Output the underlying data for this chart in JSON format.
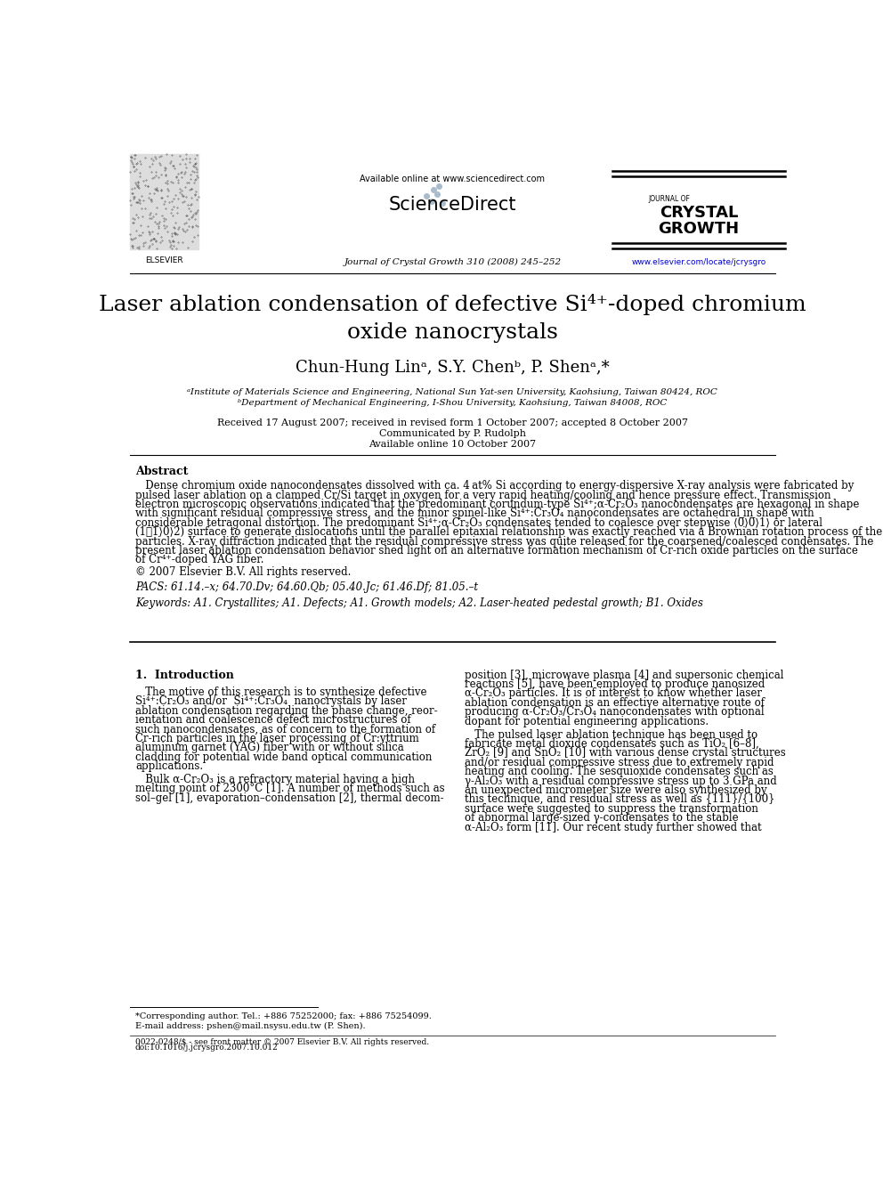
{
  "bg_color": "#ffffff",
  "page_width": 9.92,
  "page_height": 13.23,
  "header": {
    "available_online_text": "Available online at www.sciencedirect.com",
    "sciencedirect_text": "ScienceDirect",
    "journal_name_top": "JOURNAL OF",
    "journal_name_bold1": "CRYSTAL",
    "journal_name_bold2": "GROWTH",
    "journal_info": "Journal of Crystal Growth 310 (2008) 245–252",
    "journal_url": "www.elsevier.com/locate/jcrysgro",
    "elsevier_text": "ELSEVIER"
  },
  "title_line1": "Laser ablation condensation of defective Si⁴⁺-doped chromium",
  "title_line2": "oxide nanocrystals",
  "authors": "Chun-Hung Linᵃ, S.Y. Chenᵇ, P. Shenᵃ,*",
  "affiliations": [
    "ᵃInstitute of Materials Science and Engineering, National Sun Yat-sen University, Kaohsiung, Taiwan 80424, ROC",
    "ᵇDepartment of Mechanical Engineering, I-Shou University, Kaohsiung, Taiwan 84008, ROC"
  ],
  "received_info": "Received 17 August 2007; received in revised form 1 October 2007; accepted 8 October 2007",
  "communicated": "Communicated by P. Rudolph",
  "available_online": "Available online 10 October 2007",
  "abstract_heading": "Abstract",
  "copyright": "© 2007 Elsevier B.V. All rights reserved.",
  "pacs": "PACS: 61.14.–x; 64.70.Dv; 64.60.Qb; 05.40.Jc; 61.46.Df; 81.05.–t",
  "keywords": "Keywords: A1. Crystallites; A1. Defects; A1. Growth models; A2. Laser-heated pedestal growth; B1. Oxides",
  "section1_heading": "1.  Introduction",
  "footer": "0022-0248/$ - see front matter © 2007 Elsevier B.V. All rights reserved.",
  "footer2": "doi:10.1016/j.jcrysgro.2007.10.012",
  "footnote_star": "*Corresponding author. Tel.: +886 75252000; fax: +886 75254099.",
  "footnote_email": "E-mail address: pshen@mail.nsysu.edu.tw (P. Shen).",
  "colors": {
    "black": "#000000",
    "blue_url": "#0000cc"
  }
}
